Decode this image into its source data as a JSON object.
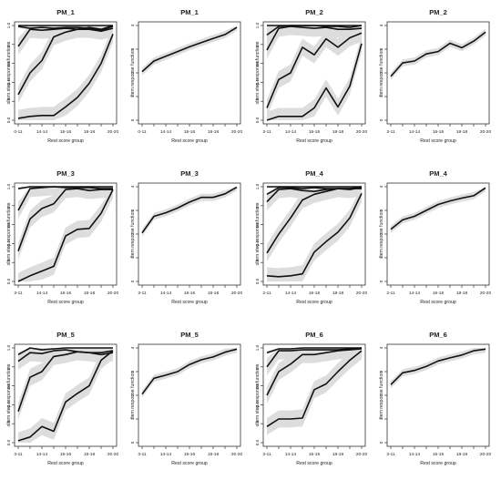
{
  "chart_data": [
    {
      "type": "line",
      "title": "PM_1",
      "xlabel": "Rest score group",
      "ylabel": "Item step response function",
      "x_ticks": [
        "0-11",
        "14-14",
        "16-16",
        "18-18",
        "20-20"
      ],
      "x_points": 9,
      "ylim": [
        0,
        1
      ],
      "y_ticks": [
        "0.0",
        "0.2",
        "0.4",
        "0.6",
        "0.8",
        "1.0"
      ],
      "series": [
        {
          "values": [
            1.0,
            1.0,
            1.0,
            1.0,
            1.0,
            1.0,
            1.0,
            1.0,
            1.0
          ]
        },
        {
          "values": [
            0.99,
            0.97,
            0.98,
            0.97,
            0.98,
            0.98,
            0.97,
            0.95,
            0.99
          ]
        },
        {
          "values": [
            0.78,
            0.96,
            0.95,
            0.96,
            0.97,
            0.96,
            0.98,
            0.96,
            1.0
          ]
        },
        {
          "values": [
            0.27,
            0.5,
            0.63,
            0.88,
            0.93,
            0.96,
            0.96,
            0.94,
            0.97
          ]
        },
        {
          "values": [
            0.02,
            0.04,
            0.05,
            0.05,
            0.14,
            0.24,
            0.39,
            0.6,
            0.91
          ]
        }
      ]
    },
    {
      "type": "line",
      "title": "PM_1",
      "xlabel": "Rest score group",
      "ylabel": "Item response function",
      "x_ticks": [
        "0-11",
        "14-14",
        "16-16",
        "18-18",
        "20-20"
      ],
      "x_points": 9,
      "ylim": [
        0,
        4
      ],
      "y_ticks": [
        "0",
        "1",
        "2",
        "3",
        "4"
      ],
      "series": [
        {
          "values": [
            2.05,
            2.5,
            2.7,
            2.9,
            3.1,
            3.28,
            3.45,
            3.62,
            3.92
          ]
        }
      ]
    },
    {
      "type": "line",
      "title": "PM_2",
      "xlabel": "Rest score group",
      "ylabel": "Item step response function",
      "x_ticks": [
        "3-11",
        "14-14",
        "16-16",
        "18-18",
        "20-20"
      ],
      "x_points": 9,
      "ylim": [
        0,
        1
      ],
      "y_ticks": [
        "0.0",
        "0.2",
        "0.4",
        "0.6",
        "0.8",
        "1.0"
      ],
      "series": [
        {
          "values": [
            1.0,
            1.0,
            1.0,
            1.0,
            1.0,
            1.0,
            1.0,
            1.0,
            1.0
          ]
        },
        {
          "values": [
            0.9,
            0.99,
            1.0,
            1.0,
            1.0,
            0.99,
            0.99,
            0.98,
            1.0
          ]
        },
        {
          "values": [
            0.74,
            0.97,
            0.99,
            0.98,
            0.97,
            0.98,
            0.96,
            0.96,
            0.97
          ]
        },
        {
          "values": [
            0.13,
            0.43,
            0.5,
            0.77,
            0.69,
            0.86,
            0.77,
            0.87,
            0.92
          ]
        },
        {
          "values": [
            0.0,
            0.04,
            0.04,
            0.04,
            0.13,
            0.34,
            0.14,
            0.36,
            0.81
          ]
        }
      ]
    },
    {
      "type": "line",
      "title": "PM_2",
      "xlabel": "Rest score group",
      "ylabel": "Item response function",
      "x_ticks": [
        "3-11",
        "14-14",
        "16-16",
        "18-18",
        "20-20"
      ],
      "x_points": 9,
      "ylim": [
        0,
        4
      ],
      "y_ticks": [
        "0",
        "1",
        "2",
        "3",
        "4"
      ],
      "series": [
        {
          "values": [
            1.85,
            2.42,
            2.5,
            2.8,
            2.9,
            3.25,
            3.06,
            3.34,
            3.72
          ]
        }
      ]
    },
    {
      "type": "line",
      "title": "PM_3",
      "xlabel": "Rest score group",
      "ylabel": "Item step response function",
      "x_ticks": [
        "3-11",
        "14-14",
        "16-16",
        "18-18",
        "20-20"
      ],
      "x_points": 9,
      "ylim": [
        0,
        1
      ],
      "y_ticks": [
        "0.0",
        "0.2",
        "0.4",
        "0.6",
        "0.8",
        "1.0"
      ],
      "series": [
        {
          "values": [
            0.98,
            1.0,
            1.0,
            1.0,
            1.0,
            1.0,
            1.0,
            1.0,
            1.0
          ]
        },
        {
          "values": [
            0.75,
            0.98,
            0.99,
            1.0,
            0.99,
            0.99,
            0.99,
            0.98,
            0.98
          ]
        },
        {
          "values": [
            0.32,
            0.66,
            0.77,
            0.82,
            0.97,
            0.98,
            0.96,
            0.97,
            0.97
          ]
        },
        {
          "values": [
            0.0,
            0.06,
            0.11,
            0.16,
            0.48,
            0.55,
            0.56,
            0.72,
            0.97
          ]
        }
      ]
    },
    {
      "type": "line",
      "title": "PM_3",
      "xlabel": "Rest score group",
      "ylabel": "Item response function",
      "x_ticks": [
        "3-11",
        "14-14",
        "16-16",
        "18-18",
        "20-20"
      ],
      "x_points": 9,
      "ylim": [
        0,
        4
      ],
      "y_ticks": [
        "0",
        "1",
        "2",
        "3",
        "4"
      ],
      "series": [
        {
          "values": [
            2.05,
            2.75,
            2.9,
            3.1,
            3.35,
            3.55,
            3.55,
            3.7,
            3.98
          ]
        }
      ]
    },
    {
      "type": "line",
      "title": "PM_4",
      "xlabel": "Rest score group",
      "ylabel": "Item step response function",
      "x_ticks": [
        "2-11",
        "14-14",
        "16-16",
        "18-18",
        "20-20"
      ],
      "x_points": 9,
      "ylim": [
        0,
        1
      ],
      "y_ticks": [
        "0.0",
        "0.2",
        "0.4",
        "0.6",
        "0.8",
        "1.0"
      ],
      "series": [
        {
          "values": [
            1.0,
            1.0,
            1.0,
            1.0,
            1.0,
            1.0,
            1.0,
            1.0,
            1.0
          ]
        },
        {
          "values": [
            0.92,
            0.99,
            0.99,
            0.98,
            0.99,
            0.98,
            0.98,
            0.98,
            1.0
          ]
        },
        {
          "values": [
            0.84,
            0.97,
            0.98,
            0.96,
            0.95,
            0.97,
            0.98,
            0.97,
            0.99
          ]
        },
        {
          "values": [
            0.3,
            0.5,
            0.67,
            0.86,
            0.92,
            0.95,
            0.98,
            0.98,
            0.98
          ]
        },
        {
          "values": [
            0.06,
            0.05,
            0.06,
            0.08,
            0.31,
            0.42,
            0.52,
            0.67,
            0.93
          ]
        }
      ]
    },
    {
      "type": "line",
      "title": "PM_4",
      "xlabel": "Rest score group",
      "ylabel": "Item response function",
      "x_ticks": [
        "2-11",
        "14-14",
        "16-16",
        "18-18",
        "20-20"
      ],
      "x_points": 9,
      "ylim": [
        0,
        4
      ],
      "y_ticks": [
        "0",
        "1",
        "2",
        "3",
        "4"
      ],
      "series": [
        {
          "values": [
            2.2,
            2.6,
            2.75,
            3.0,
            3.25,
            3.4,
            3.52,
            3.62,
            3.95
          ]
        }
      ]
    },
    {
      "type": "line",
      "title": "PM_5",
      "xlabel": "Rest score group",
      "ylabel": "Item step response function",
      "x_ticks": [
        "3-11",
        "14-14",
        "16-16",
        "18-18",
        "20-20"
      ],
      "x_points": 9,
      "ylim": [
        0,
        1
      ],
      "y_ticks": [
        "0.0",
        "0.2",
        "0.4",
        "0.6",
        "0.8",
        "1.0"
      ],
      "series": [
        {
          "values": [
            0.93,
            1.0,
            0.98,
            0.99,
            1.0,
            1.0,
            1.0,
            1.0,
            1.0
          ]
        },
        {
          "values": [
            0.86,
            0.95,
            0.94,
            0.97,
            0.98,
            0.96,
            0.95,
            0.95,
            0.97
          ]
        },
        {
          "values": [
            0.33,
            0.69,
            0.75,
            0.91,
            0.93,
            0.96,
            0.95,
            0.93,
            0.95
          ]
        },
        {
          "values": [
            0.02,
            0.06,
            0.17,
            0.12,
            0.43,
            0.52,
            0.6,
            0.87,
            0.97
          ]
        }
      ]
    },
    {
      "type": "line",
      "title": "PM_5",
      "xlabel": "Rest score group",
      "ylabel": "Item response function",
      "x_ticks": [
        "3-11",
        "14-14",
        "16-16",
        "18-18",
        "20-20"
      ],
      "x_points": 9,
      "ylim": [
        0,
        4
      ],
      "y_ticks": [
        "0",
        "1",
        "2",
        "3",
        "4"
      ],
      "series": [
        {
          "values": [
            2.05,
            2.72,
            2.85,
            3.0,
            3.3,
            3.5,
            3.62,
            3.82,
            3.95
          ]
        }
      ]
    },
    {
      "type": "line",
      "title": "PM_6",
      "xlabel": "Rest score group",
      "ylabel": "Item step response function",
      "x_ticks": [
        "3-11",
        "14-14",
        "16-16",
        "18-18",
        "20-20"
      ],
      "x_points": 9,
      "ylim": [
        0,
        1
      ],
      "y_ticks": [
        "0.0",
        "0.2",
        "0.4",
        "0.6",
        "0.8",
        "1.0"
      ],
      "series": [
        {
          "values": [
            0.95,
            0.99,
            0.99,
            1.0,
            1.0,
            1.0,
            1.0,
            1.0,
            1.0
          ]
        },
        {
          "values": [
            0.8,
            0.97,
            0.97,
            0.98,
            0.98,
            0.98,
            0.98,
            0.99,
            1.0
          ]
        },
        {
          "values": [
            0.5,
            0.75,
            0.83,
            0.93,
            0.93,
            0.95,
            0.97,
            0.98,
            0.99
          ]
        },
        {
          "values": [
            0.17,
            0.25,
            0.25,
            0.26,
            0.56,
            0.62,
            0.75,
            0.87,
            0.97
          ]
        }
      ]
    },
    {
      "type": "line",
      "title": "PM_6",
      "xlabel": "Rest score group",
      "ylabel": "Item response function",
      "x_ticks": [
        "3-11",
        "14-14",
        "16-16",
        "18-18",
        "20-20"
      ],
      "x_points": 9,
      "ylim": [
        0,
        4
      ],
      "y_ticks": [
        "0",
        "1",
        "2",
        "3",
        "4"
      ],
      "series": [
        {
          "values": [
            2.45,
            2.95,
            3.05,
            3.22,
            3.45,
            3.58,
            3.7,
            3.88,
            3.95
          ]
        }
      ]
    }
  ]
}
